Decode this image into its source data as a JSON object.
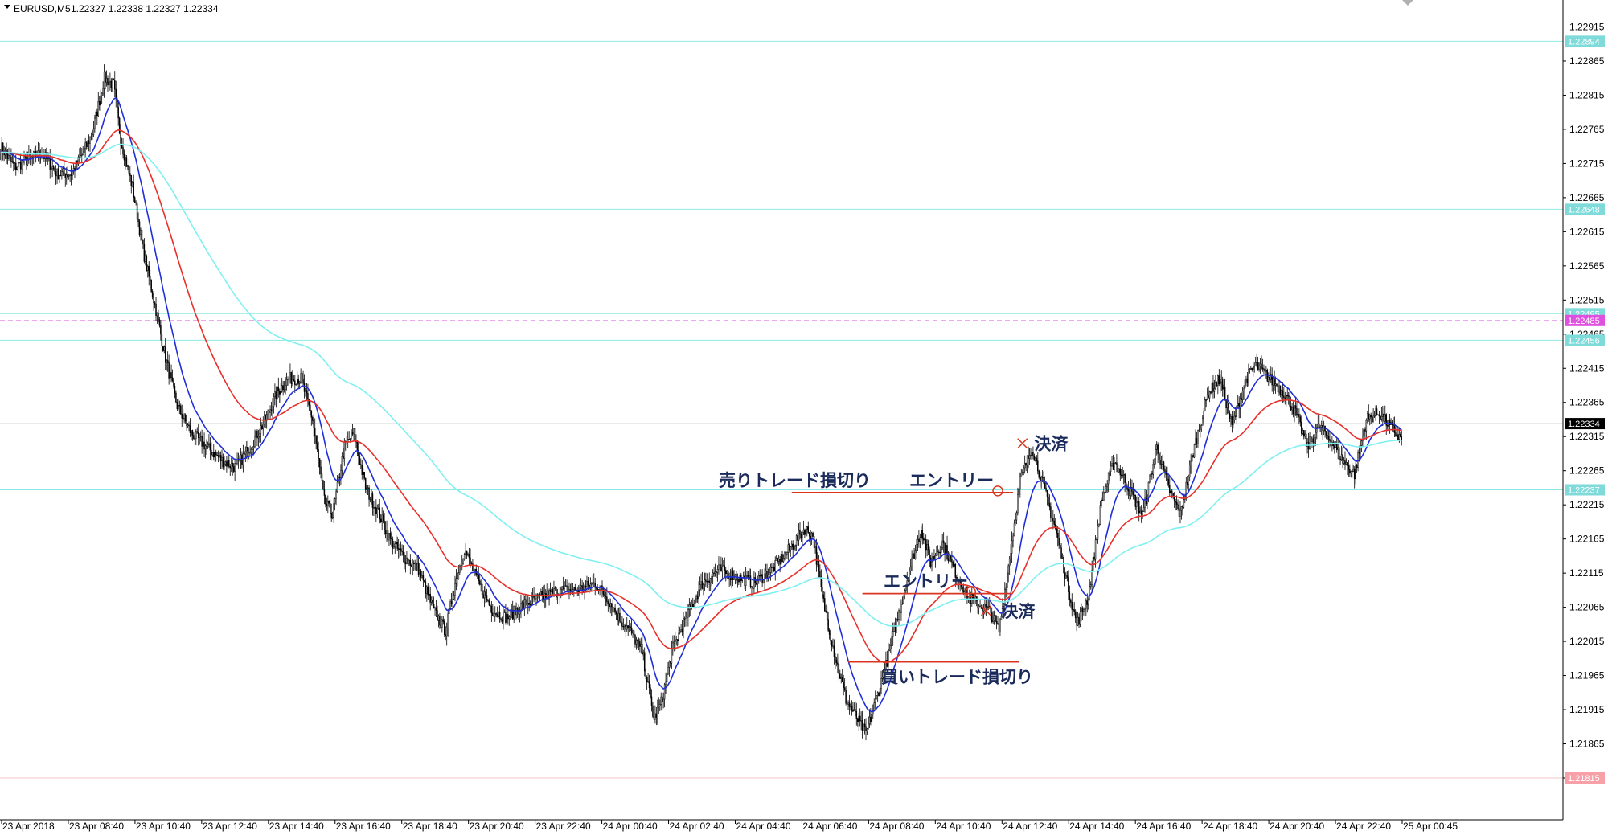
{
  "header": {
    "symbol": "EURUSD,M5",
    "ohlc": "1.22327 1.22338 1.22327 1.22334"
  },
  "colors": {
    "candle": "#000000",
    "ma_fast": "#1f2fd8",
    "ma_mid": "#e8302a",
    "ma_slow": "#7ff0f0",
    "level_line": "#8ee8e8",
    "pending_line": "#e38ee8",
    "annotation_line": "#d9351f",
    "annotation_text": "#1a2a5a",
    "price_tag": "#7fdada",
    "price_tag_current": "#000000",
    "price_tag_pending": "#e050e0",
    "price_tag_low": "#f7a0a8"
  },
  "chart_data": {
    "type": "candlestick",
    "symbol": "EURUSD",
    "timeframe": "M5",
    "ylim": [
      1.21795,
      1.22945
    ],
    "y_ticks": [
      "1.22915",
      "1.22865",
      "1.22815",
      "1.22765",
      "1.22715",
      "1.22665",
      "1.22615",
      "1.22565",
      "1.22515",
      "1.22465",
      "1.22415",
      "1.22365",
      "1.22315",
      "1.22265",
      "1.22215",
      "1.22165",
      "1.22115",
      "1.22065",
      "1.22015",
      "1.21965",
      "1.21915",
      "1.21865",
      "1.21815"
    ],
    "x_ticks": [
      "23 Apr 2018",
      "23 Apr 08:40",
      "23 Apr 10:40",
      "23 Apr 12:40",
      "23 Apr 14:40",
      "23 Apr 16:40",
      "23 Apr 18:40",
      "23 Apr 20:40",
      "23 Apr 22:40",
      "24 Apr 00:40",
      "24 Apr 02:40",
      "24 Apr 04:40",
      "24 Apr 06:40",
      "24 Apr 08:40",
      "24 Apr 10:40",
      "24 Apr 12:40",
      "24 Apr 14:40",
      "24 Apr 16:40",
      "24 Apr 18:40",
      "24 Apr 20:40",
      "24 Apr 22:40",
      "25 Apr 00:45"
    ],
    "current_price": "1.22334",
    "horizontal_levels": [
      {
        "price": "1.22894",
        "kind": "level"
      },
      {
        "price": "1.22648",
        "kind": "level"
      },
      {
        "price": "1.22495",
        "kind": "level"
      },
      {
        "price": "1.22485",
        "kind": "pending"
      },
      {
        "price": "1.22456",
        "kind": "level"
      },
      {
        "price": "1.22237",
        "kind": "level"
      },
      {
        "price": "1.21815",
        "kind": "low"
      }
    ],
    "close_anchors": [
      [
        0,
        1.2274
      ],
      [
        12,
        1.2271
      ],
      [
        22,
        1.2272
      ],
      [
        35,
        1.2273
      ],
      [
        48,
        1.227
      ],
      [
        60,
        1.227
      ],
      [
        70,
        1.2273
      ],
      [
        78,
        1.2276
      ],
      [
        88,
        1.2284
      ],
      [
        96,
        1.2283
      ],
      [
        102,
        1.2275
      ],
      [
        112,
        1.2268
      ],
      [
        122,
        1.2258
      ],
      [
        132,
        1.225
      ],
      [
        140,
        1.2243
      ],
      [
        150,
        1.2236
      ],
      [
        162,
        1.2232
      ],
      [
        175,
        1.223
      ],
      [
        188,
        1.2228
      ],
      [
        200,
        1.2227
      ],
      [
        212,
        1.223
      ],
      [
        225,
        1.2234
      ],
      [
        235,
        1.2238
      ],
      [
        245,
        1.224
      ],
      [
        255,
        1.224
      ],
      [
        265,
        1.2234
      ],
      [
        275,
        1.2222
      ],
      [
        282,
        1.222
      ],
      [
        292,
        1.223
      ],
      [
        300,
        1.2232
      ],
      [
        310,
        1.2224
      ],
      [
        322,
        1.222
      ],
      [
        332,
        1.2216
      ],
      [
        342,
        1.2214
      ],
      [
        355,
        1.2212
      ],
      [
        368,
        1.2206
      ],
      [
        378,
        1.2203
      ],
      [
        386,
        1.221
      ],
      [
        394,
        1.2215
      ],
      [
        406,
        1.221
      ],
      [
        418,
        1.2206
      ],
      [
        430,
        1.2205
      ],
      [
        445,
        1.2207
      ],
      [
        460,
        1.2208
      ],
      [
        475,
        1.2209
      ],
      [
        490,
        1.2209
      ],
      [
        505,
        1.221
      ],
      [
        515,
        1.2208
      ],
      [
        525,
        1.2205
      ],
      [
        535,
        1.2203
      ],
      [
        545,
        1.22
      ],
      [
        555,
        1.219
      ],
      [
        562,
        1.2193
      ],
      [
        570,
        1.22
      ],
      [
        582,
        1.2205
      ],
      [
        596,
        1.221
      ],
      [
        610,
        1.2212
      ],
      [
        625,
        1.2211
      ],
      [
        640,
        1.221
      ],
      [
        655,
        1.2212
      ],
      [
        670,
        1.2215
      ],
      [
        683,
        1.2218
      ],
      [
        690,
        1.2217
      ],
      [
        698,
        1.2208
      ],
      [
        708,
        1.22
      ],
      [
        718,
        1.2193
      ],
      [
        728,
        1.219
      ],
      [
        735,
        1.2188
      ],
      [
        742,
        1.2192
      ],
      [
        752,
        1.2198
      ],
      [
        762,
        1.2205
      ],
      [
        772,
        1.2212
      ],
      [
        782,
        1.2218
      ],
      [
        790,
        1.2213
      ],
      [
        800,
        1.2216
      ],
      [
        810,
        1.2212
      ],
      [
        822,
        1.2208
      ],
      [
        830,
        1.2207
      ],
      [
        840,
        1.2206
      ],
      [
        848,
        1.2203
      ],
      [
        858,
        1.2215
      ],
      [
        866,
        1.2225
      ],
      [
        876,
        1.223
      ],
      [
        886,
        1.2224
      ],
      [
        896,
        1.2218
      ],
      [
        906,
        1.221
      ],
      [
        914,
        1.2204
      ],
      [
        924,
        1.2208
      ],
      [
        935,
        1.2222
      ],
      [
        946,
        1.2228
      ],
      [
        958,
        1.2224
      ],
      [
        970,
        1.222
      ],
      [
        982,
        1.223
      ],
      [
        992,
        1.2224
      ],
      [
        1002,
        1.222
      ],
      [
        1014,
        1.223
      ],
      [
        1026,
        1.2238
      ],
      [
        1036,
        1.224
      ],
      [
        1046,
        1.2233
      ],
      [
        1058,
        1.224
      ],
      [
        1066,
        1.2242
      ],
      [
        1078,
        1.224
      ],
      [
        1090,
        1.2238
      ],
      [
        1100,
        1.2235
      ],
      [
        1110,
        1.223
      ],
      [
        1120,
        1.2233
      ],
      [
        1130,
        1.2231
      ],
      [
        1140,
        1.2228
      ],
      [
        1150,
        1.2226
      ],
      [
        1160,
        1.2234
      ],
      [
        1171,
        1.2235
      ],
      [
        1180,
        1.2233
      ],
      [
        1190,
        1.2231
      ]
    ],
    "moving_averages": [
      {
        "color_key": "ma_fast",
        "period": 21
      },
      {
        "color_key": "ma_mid",
        "period": 75
      },
      {
        "color_key": "ma_slow",
        "period": 200
      }
    ],
    "annotations": [
      {
        "label": "売りトレード損切り",
        "price": 1.22233,
        "line_from_bar": 672,
        "line_to_bar": 860,
        "text_bar": 610,
        "kind": "stop"
      },
      {
        "label": "エントリー",
        "price": 1.22233,
        "text_bar": 772,
        "marker_bar": 847,
        "kind": "entry-circle"
      },
      {
        "label": "決済",
        "price": 1.22305,
        "text_bar": 878,
        "marker_bar": 868,
        "kind": "exit-cross"
      },
      {
        "label": "エントリー",
        "price": 1.22085,
        "line_from_bar": 732,
        "line_to_bar": 858,
        "text_bar": 750,
        "marker_bar": 824,
        "kind": "entry-circle"
      },
      {
        "label": "決済",
        "price": 1.2206,
        "text_bar": 850,
        "marker_bar": 837,
        "kind": "exit-cross"
      },
      {
        "label": "買いトレード損切り",
        "price": 1.21985,
        "line_from_bar": 720,
        "line_to_bar": 865,
        "text_bar": 748,
        "kind": "stop"
      }
    ]
  }
}
